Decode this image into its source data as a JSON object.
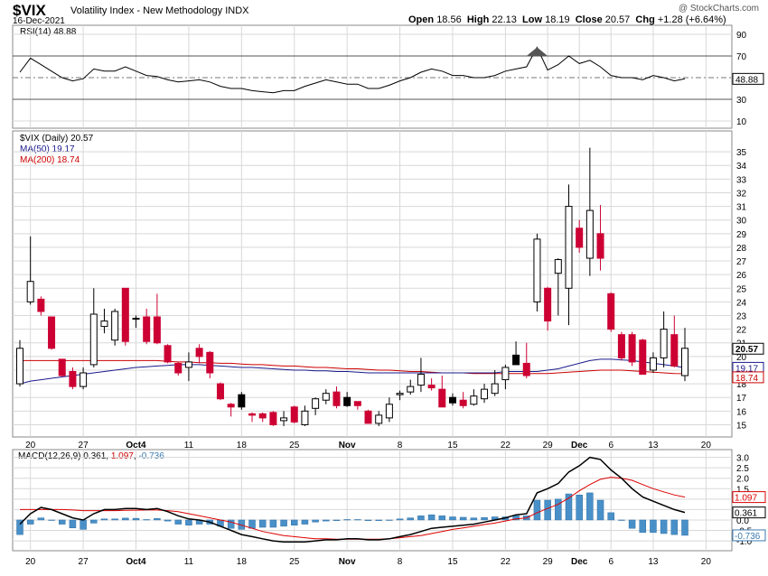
{
  "header": {
    "symbol": "$VIX",
    "name": "Volatility Index - New Methodology",
    "exchange": "INDX",
    "date": "16-Dec-2021",
    "watermark": "@ StockCharts.com",
    "open_label": "Open",
    "open_value": "18.56",
    "high_label": "High",
    "high_value": "22.13",
    "low_label": "Low",
    "low_value": "18.19",
    "close_label": "Close",
    "close_value": "20.57",
    "chg_label": "Chg",
    "chg_value": "+1.28 (+6.64%)"
  },
  "rsi_panel": {
    "label": "RSI(14) 48.88",
    "current_box": "48.88",
    "levels": [
      10,
      30,
      50,
      70,
      90
    ],
    "tick_labels": [
      "90",
      "70",
      "50",
      "30",
      "10"
    ],
    "overbought": 70,
    "oversold": 30
  },
  "price_panel": {
    "label": "$VIX (Daily) 20.57",
    "ma50_label": "MA(50) 19.17",
    "ma200_label": "MA(200) 18.74",
    "close_box": "20.57",
    "ma50_box": "19.17",
    "ma200_box": "18.74",
    "tick_labels": [
      "15",
      "16",
      "17",
      "18",
      "19",
      "20",
      "21",
      "22",
      "23",
      "24",
      "25",
      "26",
      "27",
      "28",
      "29",
      "30",
      "31",
      "32",
      "33",
      "34",
      "35"
    ]
  },
  "macd_panel": {
    "label_prefix": "MACD(12,26,9)",
    "macd_value": "0.361",
    "signal_value": "1.097",
    "hist_value": "-0.736",
    "tick_labels": [
      "3.0",
      "2.5",
      "2.0",
      "1.5",
      "1.0",
      "0.5",
      "0.0",
      "-0.5",
      "-1.0"
    ]
  },
  "x_axis": {
    "labels": [
      "20",
      "27",
      "Oct4",
      "11",
      "18",
      "25",
      "Nov",
      "8",
      "15",
      "22",
      "29",
      "Dec",
      "6",
      "13",
      "20"
    ]
  },
  "colors": {
    "up": "#ffffff",
    "down": "#cc0033",
    "black": "#000000",
    "ma50": "#1a1a8c",
    "ma200": "#cc0000",
    "macd_line": "#000000",
    "signal_line": "#dd0000",
    "histogram": "#4a90c8",
    "grid": "#d8d8d8",
    "rsi_line": "#000000"
  },
  "chart_data": {
    "type": "candlestick",
    "title": "$VIX Volatility Index - New Methodology INDX",
    "ylim": [
      14.5,
      36
    ],
    "candles": [
      {
        "date": "2021-09-17",
        "open": 18.0,
        "high": 21.2,
        "low": 17.8,
        "close": 20.6,
        "color": "up"
      },
      {
        "date": "2021-09-20",
        "open": 24.0,
        "high": 28.8,
        "low": 23.8,
        "close": 25.5,
        "color": "up"
      },
      {
        "date": "2021-09-21",
        "open": 24.2,
        "high": 24.4,
        "low": 23.0,
        "close": 23.3,
        "color": "down"
      },
      {
        "date": "2021-09-22",
        "open": 22.9,
        "high": 22.9,
        "low": 20.5,
        "close": 20.6,
        "color": "down"
      },
      {
        "date": "2021-09-23",
        "open": 19.8,
        "high": 19.8,
        "low": 18.5,
        "close": 18.6,
        "color": "down"
      },
      {
        "date": "2021-09-24",
        "open": 18.9,
        "high": 19.2,
        "low": 17.6,
        "close": 17.8,
        "color": "down"
      },
      {
        "date": "2021-09-27",
        "open": 17.8,
        "high": 19.2,
        "low": 17.6,
        "close": 18.8,
        "color": "up"
      },
      {
        "date": "2021-09-28",
        "open": 19.4,
        "high": 25.0,
        "low": 19.2,
        "close": 23.1,
        "color": "up"
      },
      {
        "date": "2021-09-29",
        "open": 22.2,
        "high": 23.5,
        "low": 21.7,
        "close": 22.6,
        "color": "up"
      },
      {
        "date": "2021-09-30",
        "open": 23.3,
        "high": 23.5,
        "low": 20.8,
        "close": 21.2,
        "color": "up"
      },
      {
        "date": "2021-10-01",
        "open": 25.0,
        "high": 25.0,
        "low": 20.8,
        "close": 21.1,
        "color": "down"
      },
      {
        "date": "2021-10-04",
        "open": 22.8,
        "high": 23.0,
        "low": 22.1,
        "close": 22.8,
        "color": "black"
      },
      {
        "date": "2021-10-05",
        "open": 22.9,
        "high": 23.5,
        "low": 20.9,
        "close": 21.1,
        "color": "down"
      },
      {
        "date": "2021-10-06",
        "open": 22.9,
        "high": 24.6,
        "low": 20.9,
        "close": 21.0,
        "color": "down"
      },
      {
        "date": "2021-10-07",
        "open": 20.8,
        "high": 20.9,
        "low": 19.5,
        "close": 19.6,
        "color": "down"
      },
      {
        "date": "2021-10-08",
        "open": 19.5,
        "high": 19.6,
        "low": 18.6,
        "close": 18.8,
        "color": "down"
      },
      {
        "date": "2021-10-11",
        "open": 19.2,
        "high": 20.3,
        "low": 18.2,
        "close": 19.6,
        "color": "up"
      },
      {
        "date": "2021-10-12",
        "open": 20.6,
        "high": 20.9,
        "low": 19.5,
        "close": 20.0,
        "color": "down"
      },
      {
        "date": "2021-10-13",
        "open": 20.3,
        "high": 20.4,
        "low": 18.4,
        "close": 18.8,
        "color": "down"
      },
      {
        "date": "2021-10-14",
        "open": 18.0,
        "high": 18.1,
        "low": 16.8,
        "close": 16.9,
        "color": "down"
      },
      {
        "date": "2021-10-15",
        "open": 16.5,
        "high": 16.6,
        "low": 15.6,
        "close": 16.3,
        "color": "down"
      },
      {
        "date": "2021-10-18",
        "open": 17.2,
        "high": 17.4,
        "low": 16.1,
        "close": 16.3,
        "color": "black"
      },
      {
        "date": "2021-10-19",
        "open": 15.8,
        "high": 15.9,
        "low": 15.2,
        "close": 15.7,
        "color": "down"
      },
      {
        "date": "2021-10-20",
        "open": 15.8,
        "high": 15.9,
        "low": 15.2,
        "close": 15.5,
        "color": "down"
      },
      {
        "date": "2021-10-21",
        "open": 15.9,
        "high": 16.0,
        "low": 14.9,
        "close": 15.0,
        "color": "down"
      },
      {
        "date": "2021-10-22",
        "open": 15.3,
        "high": 16.0,
        "low": 14.9,
        "close": 15.5,
        "color": "up"
      },
      {
        "date": "2021-10-25",
        "open": 16.3,
        "high": 16.4,
        "low": 15.1,
        "close": 15.2,
        "color": "down"
      },
      {
        "date": "2021-10-26",
        "open": 15.0,
        "high": 16.4,
        "low": 14.9,
        "close": 16.0,
        "color": "up"
      },
      {
        "date": "2021-10-27",
        "open": 16.2,
        "high": 17.0,
        "low": 15.7,
        "close": 16.9,
        "color": "up"
      },
      {
        "date": "2021-10-28",
        "open": 16.8,
        "high": 17.6,
        "low": 16.5,
        "close": 17.3,
        "color": "up"
      },
      {
        "date": "2021-10-29",
        "open": 17.4,
        "high": 17.8,
        "low": 16.2,
        "close": 16.4,
        "color": "down"
      },
      {
        "date": "2021-11-01",
        "open": 17.0,
        "high": 17.4,
        "low": 16.3,
        "close": 16.4,
        "color": "black"
      },
      {
        "date": "2021-11-02",
        "open": 16.7,
        "high": 16.7,
        "low": 16.1,
        "close": 16.4,
        "color": "down"
      },
      {
        "date": "2021-11-03",
        "open": 16.0,
        "high": 16.1,
        "low": 15.1,
        "close": 15.1,
        "color": "down"
      },
      {
        "date": "2021-11-04",
        "open": 15.1,
        "high": 16.0,
        "low": 14.9,
        "close": 15.7,
        "color": "up"
      },
      {
        "date": "2021-11-05",
        "open": 15.5,
        "high": 17.0,
        "low": 15.2,
        "close": 16.5,
        "color": "up"
      },
      {
        "date": "2021-11-08",
        "open": 17.3,
        "high": 17.5,
        "low": 16.8,
        "close": 17.2,
        "color": "up"
      },
      {
        "date": "2021-11-09",
        "open": 17.4,
        "high": 18.3,
        "low": 17.2,
        "close": 17.8,
        "color": "up"
      },
      {
        "date": "2021-11-10",
        "open": 17.9,
        "high": 19.9,
        "low": 17.4,
        "close": 18.7,
        "color": "up"
      },
      {
        "date": "2021-11-11",
        "open": 17.9,
        "high": 18.4,
        "low": 17.5,
        "close": 17.7,
        "color": "down"
      },
      {
        "date": "2021-11-12",
        "open": 17.6,
        "high": 18.6,
        "low": 16.3,
        "close": 16.3,
        "color": "down"
      },
      {
        "date": "2021-11-15",
        "open": 17.0,
        "high": 17.3,
        "low": 16.4,
        "close": 16.6,
        "color": "black"
      },
      {
        "date": "2021-11-16",
        "open": 16.8,
        "high": 17.4,
        "low": 16.2,
        "close": 16.4,
        "color": "down"
      },
      {
        "date": "2021-11-17",
        "open": 16.5,
        "high": 17.6,
        "low": 16.4,
        "close": 17.1,
        "color": "up"
      },
      {
        "date": "2021-11-18",
        "open": 16.9,
        "high": 18.0,
        "low": 16.6,
        "close": 17.6,
        "color": "up"
      },
      {
        "date": "2021-11-19",
        "open": 17.3,
        "high": 19.0,
        "low": 17.1,
        "close": 18.0,
        "color": "up"
      },
      {
        "date": "2021-11-22",
        "open": 18.3,
        "high": 19.4,
        "low": 17.6,
        "close": 19.2,
        "color": "up"
      },
      {
        "date": "2021-11-23",
        "open": 20.1,
        "high": 21.1,
        "low": 19.4,
        "close": 19.4,
        "color": "black"
      },
      {
        "date": "2021-11-24",
        "open": 19.5,
        "high": 21.0,
        "low": 18.4,
        "close": 18.6,
        "color": "down"
      },
      {
        "date": "2021-11-26",
        "open": 24.0,
        "high": 29.0,
        "low": 23.3,
        "close": 28.6,
        "color": "up"
      },
      {
        "date": "2021-11-29",
        "open": 25.0,
        "high": 25.1,
        "low": 21.9,
        "close": 22.6,
        "color": "down"
      },
      {
        "date": "2021-11-30",
        "open": 26.1,
        "high": 27.2,
        "low": 23.0,
        "close": 27.1,
        "color": "up"
      },
      {
        "date": "2021-12-01",
        "open": 25.0,
        "high": 32.6,
        "low": 22.3,
        "close": 31.0,
        "color": "up"
      },
      {
        "date": "2021-12-02",
        "open": 29.4,
        "high": 30.0,
        "low": 27.6,
        "close": 28.0,
        "color": "down"
      },
      {
        "date": "2021-12-03",
        "open": 27.2,
        "high": 35.3,
        "low": 25.9,
        "close": 30.7,
        "color": "up"
      },
      {
        "date": "2021-12-06",
        "open": 29.0,
        "high": 31.1,
        "low": 26.3,
        "close": 27.2,
        "color": "down"
      },
      {
        "date": "2021-12-07",
        "open": 24.6,
        "high": 24.7,
        "low": 21.8,
        "close": 22.0,
        "color": "down"
      },
      {
        "date": "2021-12-08",
        "open": 21.6,
        "high": 21.8,
        "low": 19.7,
        "close": 19.9,
        "color": "down"
      },
      {
        "date": "2021-12-09",
        "open": 19.6,
        "high": 21.8,
        "low": 19.3,
        "close": 21.6,
        "color": "down"
      },
      {
        "date": "2021-12-10",
        "open": 21.2,
        "high": 21.3,
        "low": 18.7,
        "close": 18.7,
        "color": "down"
      },
      {
        "date": "2021-12-13",
        "open": 19.0,
        "high": 20.3,
        "low": 18.8,
        "close": 19.9,
        "color": "up"
      },
      {
        "date": "2021-12-14",
        "open": 19.9,
        "high": 23.3,
        "low": 19.2,
        "close": 22.0,
        "color": "up"
      },
      {
        "date": "2021-12-15",
        "open": 21.6,
        "high": 23.0,
        "low": 19.2,
        "close": 19.3,
        "color": "down"
      },
      {
        "date": "2021-12-16",
        "open": 18.6,
        "high": 22.1,
        "low": 18.2,
        "close": 20.6,
        "color": "up"
      }
    ],
    "ma50": [
      18.0,
      18.2,
      18.3,
      18.4,
      18.5,
      18.6,
      18.7,
      18.8,
      18.9,
      19.0,
      19.1,
      19.2,
      19.25,
      19.3,
      19.35,
      19.4,
      19.4,
      19.4,
      19.35,
      19.3,
      19.25,
      19.2,
      19.2,
      19.15,
      19.1,
      19.05,
      19.0,
      19.0,
      18.95,
      18.95,
      18.9,
      18.9,
      18.85,
      18.8,
      18.8,
      18.8,
      18.8,
      18.8,
      18.8,
      18.8,
      18.8,
      18.8,
      18.8,
      18.8,
      18.8,
      18.8,
      18.9,
      18.9,
      18.9,
      18.9,
      19.0,
      19.1,
      19.3,
      19.5,
      19.7,
      19.8,
      19.8,
      19.75,
      19.7,
      19.6,
      19.5,
      19.4,
      19.3,
      19.17
    ],
    "ma200": [
      19.7,
      19.7,
      19.7,
      19.7,
      19.7,
      19.7,
      19.7,
      19.7,
      19.7,
      19.7,
      19.7,
      19.7,
      19.7,
      19.7,
      19.65,
      19.6,
      19.6,
      19.55,
      19.55,
      19.5,
      19.5,
      19.45,
      19.4,
      19.4,
      19.35,
      19.3,
      19.3,
      19.25,
      19.2,
      19.2,
      19.15,
      19.1,
      19.1,
      19.05,
      19.0,
      19.0,
      18.95,
      18.9,
      18.9,
      18.85,
      18.8,
      18.8,
      18.8,
      18.75,
      18.75,
      18.75,
      18.75,
      18.75,
      18.75,
      18.75,
      18.75,
      18.8,
      18.85,
      18.9,
      18.95,
      19.0,
      19.0,
      19.0,
      18.95,
      18.9,
      18.85,
      18.8,
      18.75,
      18.74
    ],
    "rsi": [
      55,
      68,
      62,
      56,
      50,
      47,
      49,
      58,
      56,
      56,
      60,
      56,
      52,
      51,
      48,
      46,
      47,
      48,
      46,
      42,
      40,
      40,
      38,
      37,
      36,
      38,
      38,
      42,
      45,
      48,
      46,
      44,
      44,
      40,
      40,
      43,
      47,
      50,
      55,
      58,
      56,
      52,
      52,
      50,
      50,
      52,
      56,
      58,
      60,
      78,
      57,
      62,
      70,
      63,
      66,
      60,
      52,
      50,
      50,
      48,
      52,
      50,
      47,
      48.88
    ],
    "macd": [
      -0.2,
      0.3,
      0.6,
      0.5,
      0.3,
      0.1,
      0.0,
      0.3,
      0.5,
      0.5,
      0.55,
      0.55,
      0.5,
      0.55,
      0.4,
      0.2,
      0.05,
      0.0,
      -0.1,
      -0.3,
      -0.5,
      -0.7,
      -0.8,
      -0.9,
      -1.0,
      -1.05,
      -1.05,
      -1.05,
      -1.0,
      -0.95,
      -0.95,
      -0.9,
      -0.9,
      -0.95,
      -0.95,
      -0.9,
      -0.8,
      -0.7,
      -0.55,
      -0.4,
      -0.35,
      -0.3,
      -0.25,
      -0.2,
      -0.1,
      0.0,
      0.1,
      0.25,
      0.3,
      1.3,
      1.5,
      1.75,
      2.3,
      2.6,
      3.0,
      2.9,
      2.4,
      2.0,
      1.5,
      1.1,
      0.9,
      0.7,
      0.5,
      0.361
    ],
    "signal": [
      0.5,
      0.5,
      0.5,
      0.5,
      0.5,
      0.48,
      0.45,
      0.45,
      0.45,
      0.45,
      0.46,
      0.47,
      0.48,
      0.48,
      0.45,
      0.4,
      0.3,
      0.2,
      0.1,
      0.0,
      -0.1,
      -0.25,
      -0.4,
      -0.55,
      -0.65,
      -0.75,
      -0.8,
      -0.85,
      -0.9,
      -0.9,
      -0.92,
      -0.92,
      -0.92,
      -0.92,
      -0.92,
      -0.9,
      -0.85,
      -0.8,
      -0.75,
      -0.65,
      -0.55,
      -0.45,
      -0.38,
      -0.3,
      -0.22,
      -0.15,
      -0.05,
      0.05,
      0.1,
      0.35,
      0.55,
      0.75,
      1.05,
      1.4,
      1.7,
      1.95,
      2.05,
      2.0,
      1.9,
      1.7,
      1.5,
      1.35,
      1.2,
      1.097
    ]
  }
}
